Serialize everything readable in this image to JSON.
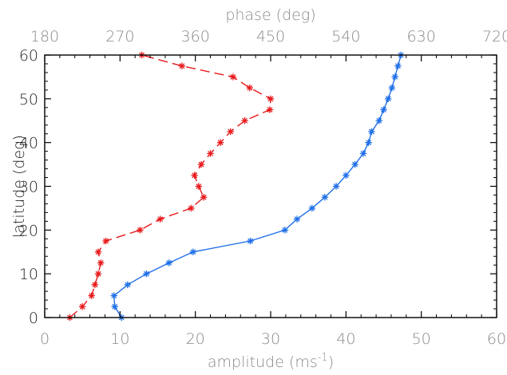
{
  "chart_data": {
    "type": "line",
    "x_axis": {
      "label_prefix": "amplitude (ms",
      "label_superscript": "-1",
      "label_suffix": ")",
      "range": [
        0,
        60
      ],
      "ticks": [
        "0",
        "10",
        "20",
        "30",
        "40",
        "50",
        "60"
      ]
    },
    "x2_axis": {
      "label": "phase (deg)",
      "range": [
        180,
        720
      ],
      "ticks": [
        "180",
        "270",
        "360",
        "450",
        "540",
        "630",
        "720"
      ]
    },
    "y_axis": {
      "label": "latitude (deg)",
      "range": [
        0,
        60
      ],
      "ticks": [
        "0",
        "10",
        "20",
        "30",
        "40",
        "50",
        "60"
      ]
    },
    "series": [
      {
        "axis": "amplitude",
        "color": "#1f6fe8",
        "line_style": "solid",
        "marker": "asterisk",
        "points": [
          [
            10.2,
            0
          ],
          [
            9.3,
            2.5
          ],
          [
            9.2,
            5
          ],
          [
            11,
            7.5
          ],
          [
            13.5,
            10
          ],
          [
            16.5,
            12.5
          ],
          [
            19.7,
            15
          ],
          [
            27.3,
            17.5
          ],
          [
            31.9,
            20
          ],
          [
            33.5,
            22.5
          ],
          [
            35.5,
            25
          ],
          [
            37.2,
            27.5
          ],
          [
            38.7,
            30
          ],
          [
            40,
            32.5
          ],
          [
            41.2,
            35
          ],
          [
            42.3,
            37.5
          ],
          [
            43,
            40
          ],
          [
            43.4,
            42.5
          ],
          [
            44.4,
            45
          ],
          [
            45,
            47.5
          ],
          [
            45.6,
            50
          ],
          [
            46.1,
            52.5
          ],
          [
            46.5,
            55
          ],
          [
            46.9,
            57.5
          ],
          [
            47.3,
            60
          ]
        ]
      },
      {
        "axis": "phase",
        "color": "#e8191c",
        "line_style": "dashed",
        "marker": "asterisk",
        "points": [
          [
            210,
            0
          ],
          [
            225,
            2.5
          ],
          [
            236,
            5
          ],
          [
            240,
            7.5
          ],
          [
            244,
            10
          ],
          [
            247,
            12.5
          ],
          [
            244,
            15
          ],
          [
            253,
            17.5
          ],
          [
            294,
            20
          ],
          [
            318,
            22.5
          ],
          [
            355,
            25
          ],
          [
            370,
            27.5
          ],
          [
            364,
            30
          ],
          [
            359,
            32.5
          ],
          [
            367,
            35
          ],
          [
            378,
            37.5
          ],
          [
            390,
            40
          ],
          [
            402,
            42.5
          ],
          [
            419,
            45
          ],
          [
            449,
            47.5
          ],
          [
            450,
            50
          ],
          [
            425,
            52.5
          ],
          [
            405,
            55
          ],
          [
            344,
            57.5
          ],
          [
            296,
            60
          ]
        ]
      }
    ]
  }
}
